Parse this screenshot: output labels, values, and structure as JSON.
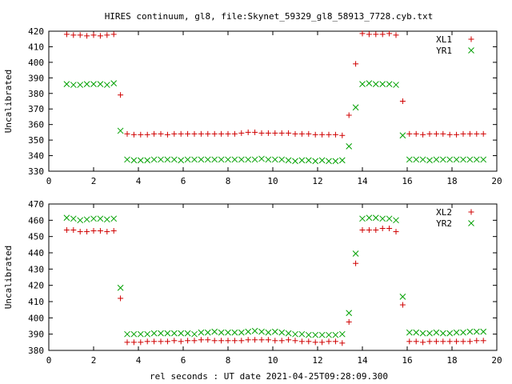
{
  "title": "HIRES continuum, gl8, file:Skynet_59329_gl8_58913_7728.cyb.txt",
  "xlabel": "rel seconds : UT date 2021-04-25T09:28:09.300",
  "colors": {
    "red": "#d00000",
    "green": "#00a000",
    "axis": "#000000"
  },
  "chart_data": [
    {
      "type": "scatter",
      "ylabel": "Uncalibrated",
      "xlim": [
        0,
        20
      ],
      "ylim": [
        330,
        420
      ],
      "xticks": [
        "0",
        "2",
        "4",
        "6",
        "8",
        "10",
        "12",
        "14",
        "16",
        "18",
        "20"
      ],
      "yticks": [
        "330",
        "340",
        "350",
        "360",
        "370",
        "380",
        "390",
        "400",
        "410",
        "420"
      ],
      "legend_position": "top-right",
      "series": [
        {
          "name": "XL1",
          "marker": "plus",
          "color": "#d00000",
          "x": [
            0.8,
            1.1,
            1.4,
            1.7,
            2.0,
            2.3,
            2.6,
            2.9,
            3.2,
            3.5,
            3.8,
            4.1,
            4.4,
            4.7,
            5.0,
            5.3,
            5.6,
            5.9,
            6.2,
            6.5,
            6.8,
            7.1,
            7.4,
            7.7,
            8.0,
            8.3,
            8.6,
            8.9,
            9.2,
            9.5,
            9.8,
            10.1,
            10.4,
            10.7,
            11.0,
            11.3,
            11.6,
            11.9,
            12.2,
            12.5,
            12.8,
            13.1,
            13.4,
            13.7,
            14.0,
            14.3,
            14.6,
            14.9,
            15.2,
            15.5,
            15.8,
            16.1,
            16.4,
            16.7,
            17.0,
            17.3,
            17.6,
            17.9,
            18.2,
            18.5,
            18.8,
            19.1,
            19.4
          ],
          "y": [
            418,
            417.5,
            417.5,
            417,
            417.5,
            417,
            417.5,
            418,
            379,
            354,
            353.5,
            353.5,
            353.5,
            354,
            354,
            353.5,
            354,
            354,
            354,
            354,
            354,
            354,
            354,
            354,
            354,
            354,
            354.5,
            355,
            355,
            354.5,
            354.5,
            354.5,
            354.5,
            354.5,
            354,
            354,
            354,
            353.5,
            353.5,
            353.5,
            353.5,
            353,
            366,
            399,
            418.5,
            418,
            418,
            418,
            418.5,
            417.5,
            375,
            354,
            354,
            353.5,
            354,
            354,
            354,
            353.5,
            353.5,
            354,
            354,
            354,
            354
          ]
        },
        {
          "name": "YR1",
          "marker": "cross",
          "color": "#00a000",
          "x": [
            0.8,
            1.1,
            1.4,
            1.7,
            2.0,
            2.3,
            2.6,
            2.9,
            3.2,
            3.5,
            3.8,
            4.1,
            4.4,
            4.7,
            5.0,
            5.3,
            5.6,
            5.9,
            6.2,
            6.5,
            6.8,
            7.1,
            7.4,
            7.7,
            8.0,
            8.3,
            8.6,
            8.9,
            9.2,
            9.5,
            9.8,
            10.1,
            10.4,
            10.7,
            11.0,
            11.3,
            11.6,
            11.9,
            12.2,
            12.5,
            12.8,
            13.1,
            13.4,
            13.7,
            14.0,
            14.3,
            14.6,
            14.9,
            15.2,
            15.5,
            15.8,
            16.1,
            16.4,
            16.7,
            17.0,
            17.3,
            17.6,
            17.9,
            18.2,
            18.5,
            18.8,
            19.1,
            19.4
          ],
          "y": [
            386,
            385.5,
            385.5,
            386,
            386,
            386,
            385.5,
            386.5,
            356,
            337.5,
            337,
            337,
            337,
            337.5,
            337.5,
            337.5,
            337.5,
            337,
            337.5,
            337.5,
            337.5,
            337.5,
            337.5,
            337.5,
            337.5,
            337.5,
            337.5,
            337.5,
            337.5,
            338,
            337.5,
            337.5,
            337.5,
            337,
            336.5,
            337,
            337,
            336.5,
            337,
            336.5,
            336.5,
            337,
            346,
            371,
            386,
            386.5,
            386,
            386,
            386,
            385.5,
            353,
            337.5,
            337.5,
            337.5,
            337,
            337.5,
            337.5,
            337.5,
            337.5,
            337.5,
            337.5,
            337.5,
            337.5
          ]
        }
      ]
    },
    {
      "type": "scatter",
      "ylabel": "Uncalibrated",
      "xlim": [
        0,
        20
      ],
      "ylim": [
        380,
        470
      ],
      "xticks": [
        "0",
        "2",
        "4",
        "6",
        "8",
        "10",
        "12",
        "14",
        "16",
        "18",
        "20"
      ],
      "yticks": [
        "380",
        "390",
        "400",
        "410",
        "420",
        "430",
        "440",
        "450",
        "460",
        "470"
      ],
      "legend_position": "top-right",
      "series": [
        {
          "name": "XL2",
          "marker": "plus",
          "color": "#d00000",
          "x": [
            0.8,
            1.1,
            1.4,
            1.7,
            2.0,
            2.3,
            2.6,
            2.9,
            3.2,
            3.5,
            3.8,
            4.1,
            4.4,
            4.7,
            5.0,
            5.3,
            5.6,
            5.9,
            6.2,
            6.5,
            6.8,
            7.1,
            7.4,
            7.7,
            8.0,
            8.3,
            8.6,
            8.9,
            9.2,
            9.5,
            9.8,
            10.1,
            10.4,
            10.7,
            11.0,
            11.3,
            11.6,
            11.9,
            12.2,
            12.5,
            12.8,
            13.1,
            13.4,
            13.7,
            14.0,
            14.3,
            14.6,
            14.9,
            15.2,
            15.5,
            15.8,
            16.1,
            16.4,
            16.7,
            17.0,
            17.3,
            17.6,
            17.9,
            18.2,
            18.5,
            18.8,
            19.1,
            19.4
          ],
          "y": [
            454,
            454,
            453,
            453,
            453.5,
            453.5,
            453,
            453.5,
            412,
            385,
            385,
            385,
            385.5,
            385.5,
            385.5,
            385.5,
            386,
            385.5,
            386,
            386,
            386.5,
            386.5,
            386,
            386,
            386,
            386,
            386,
            386.5,
            386.5,
            386.5,
            386.5,
            386,
            386,
            386.5,
            386,
            385.5,
            385.5,
            385,
            385,
            385.5,
            385.5,
            384.5,
            397.5,
            433.5,
            454,
            454,
            454,
            455,
            455,
            453,
            408,
            385.5,
            385.5,
            385,
            385.5,
            385.5,
            385.5,
            385.5,
            385.5,
            385.5,
            385.5,
            386,
            386
          ]
        },
        {
          "name": "YR2",
          "marker": "cross",
          "color": "#00a000",
          "x": [
            0.8,
            1.1,
            1.4,
            1.7,
            2.0,
            2.3,
            2.6,
            2.9,
            3.2,
            3.5,
            3.8,
            4.1,
            4.4,
            4.7,
            5.0,
            5.3,
            5.6,
            5.9,
            6.2,
            6.5,
            6.8,
            7.1,
            7.4,
            7.7,
            8.0,
            8.3,
            8.6,
            8.9,
            9.2,
            9.5,
            9.8,
            10.1,
            10.4,
            10.7,
            11.0,
            11.3,
            11.6,
            11.9,
            12.2,
            12.5,
            12.8,
            13.1,
            13.4,
            13.7,
            14.0,
            14.3,
            14.6,
            14.9,
            15.2,
            15.5,
            15.8,
            16.1,
            16.4,
            16.7,
            17.0,
            17.3,
            17.6,
            17.9,
            18.2,
            18.5,
            18.8,
            19.1,
            19.4
          ],
          "y": [
            461.5,
            461,
            460,
            460.5,
            461,
            461,
            460.5,
            461,
            418.5,
            390,
            390,
            390,
            390,
            390.5,
            390.5,
            390.5,
            390.5,
            390.5,
            390.5,
            390,
            391,
            391,
            391.5,
            391,
            391,
            391,
            391,
            391.5,
            392,
            391.5,
            391,
            391.5,
            391,
            390.5,
            390,
            390,
            389.5,
            389.5,
            389.5,
            389.5,
            389.5,
            390,
            403,
            439.5,
            461,
            461.5,
            461.5,
            461,
            461,
            460,
            413,
            391,
            391,
            390.5,
            390.5,
            391,
            390.5,
            390.5,
            391,
            391,
            391.5,
            391.5,
            391.5
          ]
        }
      ]
    }
  ]
}
